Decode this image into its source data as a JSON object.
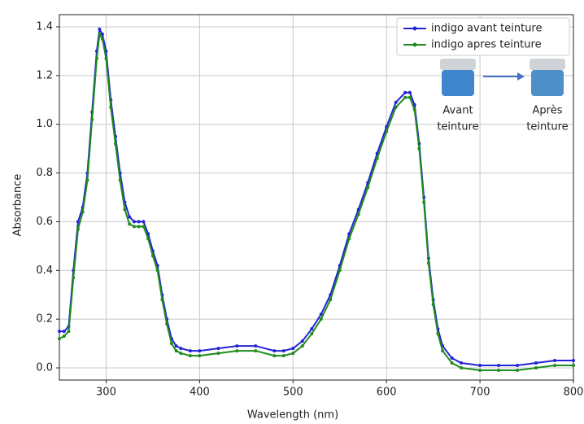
{
  "chart_data": {
    "type": "line",
    "xlabel": "Wavelength (nm)",
    "ylabel": "Absorbance",
    "x": [
      250,
      255,
      260,
      265,
      270,
      275,
      280,
      285,
      290,
      293,
      296,
      300,
      305,
      310,
      315,
      320,
      325,
      330,
      335,
      340,
      345,
      350,
      355,
      360,
      365,
      370,
      375,
      380,
      390,
      400,
      420,
      440,
      460,
      480,
      490,
      500,
      510,
      520,
      530,
      540,
      550,
      560,
      570,
      580,
      590,
      600,
      610,
      620,
      625,
      630,
      635,
      640,
      645,
      650,
      655,
      660,
      670,
      680,
      700,
      720,
      740,
      760,
      780,
      800
    ],
    "series": [
      {
        "name": "indigo avant teinture",
        "color": "#2323d6",
        "values": [
          0.15,
          0.15,
          0.17,
          0.4,
          0.6,
          0.66,
          0.8,
          1.05,
          1.3,
          1.39,
          1.37,
          1.3,
          1.1,
          0.95,
          0.8,
          0.68,
          0.62,
          0.6,
          0.6,
          0.6,
          0.55,
          0.48,
          0.42,
          0.3,
          0.2,
          0.12,
          0.09,
          0.08,
          0.07,
          0.07,
          0.08,
          0.09,
          0.09,
          0.07,
          0.07,
          0.08,
          0.11,
          0.16,
          0.22,
          0.3,
          0.42,
          0.55,
          0.65,
          0.76,
          0.88,
          0.99,
          1.09,
          1.13,
          1.13,
          1.08,
          0.92,
          0.7,
          0.45,
          0.28,
          0.16,
          0.09,
          0.04,
          0.02,
          0.01,
          0.01,
          0.01,
          0.02,
          0.03,
          0.03
        ]
      },
      {
        "name": "indigo apres teinture",
        "color": "#1e8c1e",
        "values": [
          0.12,
          0.13,
          0.15,
          0.37,
          0.57,
          0.64,
          0.77,
          1.02,
          1.27,
          1.37,
          1.35,
          1.27,
          1.07,
          0.92,
          0.77,
          0.65,
          0.59,
          0.58,
          0.58,
          0.58,
          0.53,
          0.46,
          0.4,
          0.28,
          0.18,
          0.1,
          0.07,
          0.06,
          0.05,
          0.05,
          0.06,
          0.07,
          0.07,
          0.05,
          0.05,
          0.06,
          0.09,
          0.14,
          0.2,
          0.28,
          0.4,
          0.53,
          0.63,
          0.74,
          0.86,
          0.97,
          1.07,
          1.11,
          1.11,
          1.06,
          0.9,
          0.68,
          0.43,
          0.26,
          0.14,
          0.07,
          0.02,
          0.0,
          -0.01,
          -0.01,
          -0.01,
          0.0,
          0.01,
          0.01
        ]
      }
    ],
    "xlim": [
      250,
      800
    ],
    "xticks": [
      300,
      400,
      500,
      600,
      700,
      800
    ],
    "ylim": [
      -0.05,
      1.45
    ],
    "yticks": [
      {
        "value": 0,
        "label": "0.0"
      },
      0.2,
      0.4,
      0.6,
      0.8,
      {
        "value": 1,
        "label": "1.0"
      },
      1.2,
      1.4
    ],
    "grid": true,
    "legend": "upper right",
    "annotations": [
      [
        "Avant",
        "teinture"
      ],
      [
        "Après",
        "teinture"
      ]
    ]
  }
}
